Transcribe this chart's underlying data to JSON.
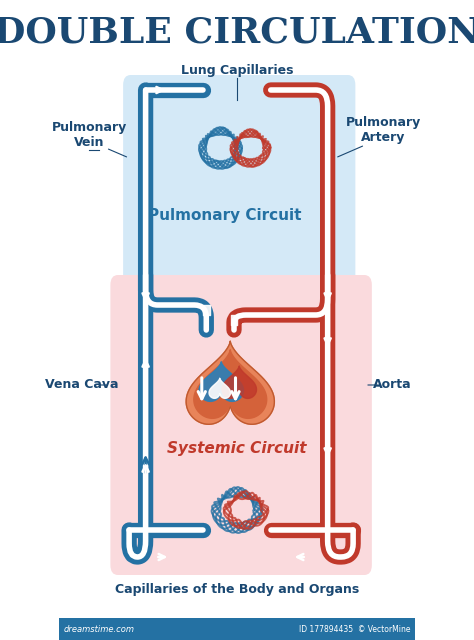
{
  "title": "DOUBLE CIRCULATION",
  "title_color": "#1a4872",
  "title_fontsize": 26,
  "bg_color": "#ffffff",
  "blue": "#2471a3",
  "red": "#c0392b",
  "dark_blue": "#1a5276",
  "dark_red": "#922b21",
  "light_blue": "#d4e9f7",
  "light_red": "#fadadd",
  "pulm_label": "Pulmonary Circuit",
  "sys_label": "Systemic Circuit",
  "lung_label": "Lung Capillaries",
  "body_label": "Capillaries of the Body and Organs",
  "pv_label": "Pulmonary\nVein",
  "pa_label": "Pulmonary\nArtery",
  "vc_label": "Vena Cava",
  "ao_label": "Aorta",
  "label_color": "#1a4872",
  "pulm_text_color": "#2471a3",
  "sys_text_color": "#c0392b",
  "footer_bg": "#2471a3",
  "footer_left": "dreamstime.com",
  "footer_right": "ID 177894435  © VectorMine"
}
